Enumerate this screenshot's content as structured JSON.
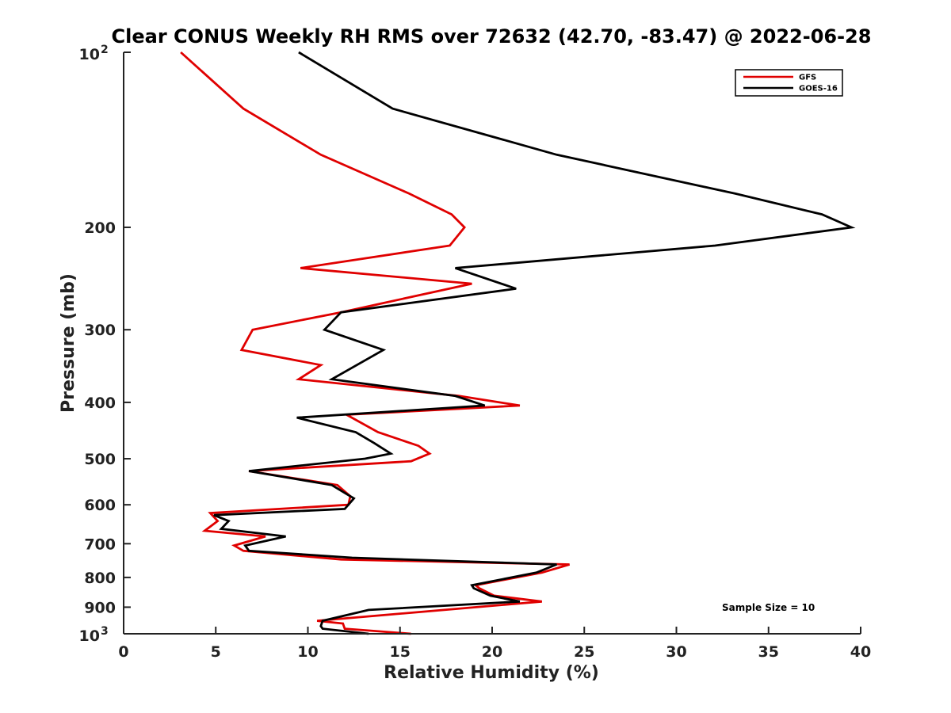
{
  "chart_data": {
    "type": "line",
    "title": "Clear CONUS Weekly RH RMS over 72632 (42.70, -83.47) @ 2022-06-28",
    "xlabel": "Relative Humidity (%)",
    "ylabel": "Pressure (mb)",
    "xlim": [
      0,
      40
    ],
    "ylim": [
      100,
      1000
    ],
    "y_scale": "log",
    "y_reversed": true,
    "x_ticks": [
      "0",
      "5",
      "10",
      "15",
      "20",
      "25",
      "30",
      "35",
      "40"
    ],
    "y_ticks": [
      {
        "value": 100,
        "label": "10",
        "sup": "2"
      },
      {
        "value": 200,
        "label": "200",
        "sup": ""
      },
      {
        "value": 300,
        "label": "300",
        "sup": ""
      },
      {
        "value": 400,
        "label": "400",
        "sup": ""
      },
      {
        "value": 500,
        "label": "500",
        "sup": ""
      },
      {
        "value": 600,
        "label": "600",
        "sup": ""
      },
      {
        "value": 700,
        "label": "700",
        "sup": ""
      },
      {
        "value": 800,
        "label": "800",
        "sup": ""
      },
      {
        "value": 900,
        "label": "900",
        "sup": ""
      },
      {
        "value": 1000,
        "label": "10",
        "sup": "3"
      }
    ],
    "legend_position": "top-right",
    "grid": false,
    "annotation": "Sample Size = 10",
    "series": [
      {
        "name": "GFS",
        "color": "#e00000",
        "points": [
          [
            3.1,
            100
          ],
          [
            6.5,
            125
          ],
          [
            10.7,
            150
          ],
          [
            15.5,
            175
          ],
          [
            17.8,
            190
          ],
          [
            18.5,
            200
          ],
          [
            17.7,
            215
          ],
          [
            9.6,
            235
          ],
          [
            18.9,
            250
          ],
          [
            11.8,
            280
          ],
          [
            7.0,
            300
          ],
          [
            6.4,
            325
          ],
          [
            10.7,
            345
          ],
          [
            9.5,
            365
          ],
          [
            18.2,
            390
          ],
          [
            21.5,
            405
          ],
          [
            12.1,
            420
          ],
          [
            13.8,
            450
          ],
          [
            16.0,
            475
          ],
          [
            16.6,
            490
          ],
          [
            15.6,
            505
          ],
          [
            6.8,
            525
          ],
          [
            11.6,
            555
          ],
          [
            12.3,
            580
          ],
          [
            12.2,
            600
          ],
          [
            4.7,
            620
          ],
          [
            5.1,
            640
          ],
          [
            4.4,
            665
          ],
          [
            7.7,
            680
          ],
          [
            6.0,
            705
          ],
          [
            6.5,
            720
          ],
          [
            11.8,
            745
          ],
          [
            24.2,
            760
          ],
          [
            22.7,
            785
          ],
          [
            19.1,
            825
          ],
          [
            19.3,
            835
          ],
          [
            20.1,
            860
          ],
          [
            22.7,
            880
          ],
          [
            10.5,
            950
          ],
          [
            11.9,
            960
          ],
          [
            12.0,
            980
          ],
          [
            15.6,
            1000
          ]
        ]
      },
      {
        "name": "GOES-16",
        "color": "#000000",
        "points": [
          [
            9.5,
            100
          ],
          [
            14.6,
            125
          ],
          [
            23.5,
            150
          ],
          [
            33.2,
            175
          ],
          [
            37.9,
            190
          ],
          [
            39.5,
            200
          ],
          [
            32.1,
            215
          ],
          [
            18.0,
            235
          ],
          [
            21.3,
            255
          ],
          [
            11.8,
            280
          ],
          [
            10.9,
            300
          ],
          [
            14.1,
            325
          ],
          [
            11.3,
            365
          ],
          [
            18.0,
            390
          ],
          [
            19.6,
            405
          ],
          [
            9.4,
            425
          ],
          [
            12.6,
            450
          ],
          [
            13.6,
            470
          ],
          [
            14.5,
            490
          ],
          [
            13.1,
            500
          ],
          [
            6.8,
            525
          ],
          [
            11.3,
            555
          ],
          [
            12.1,
            575
          ],
          [
            12.5,
            585
          ],
          [
            12.0,
            610
          ],
          [
            4.9,
            625
          ],
          [
            5.7,
            640
          ],
          [
            5.3,
            660
          ],
          [
            8.8,
            680
          ],
          [
            6.6,
            705
          ],
          [
            6.8,
            720
          ],
          [
            12.4,
            740
          ],
          [
            23.5,
            760
          ],
          [
            22.4,
            785
          ],
          [
            18.9,
            825
          ],
          [
            19.0,
            835
          ],
          [
            19.9,
            860
          ],
          [
            21.5,
            880
          ],
          [
            13.3,
            910
          ],
          [
            10.8,
            950
          ],
          [
            10.7,
            970
          ],
          [
            10.8,
            980
          ],
          [
            13.3,
            1000
          ]
        ]
      }
    ]
  }
}
